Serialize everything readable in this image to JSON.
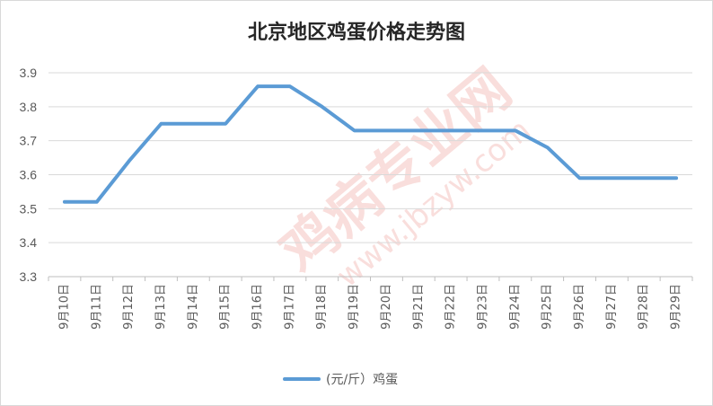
{
  "chart_data": {
    "type": "line",
    "title": "北京地区鸡蛋价格走势图",
    "xlabel": "",
    "ylabel": "",
    "ylim": [
      3.3,
      3.9
    ],
    "yticks": [
      "3.3",
      "3.4",
      "3.5",
      "3.6",
      "3.7",
      "3.8",
      "3.9"
    ],
    "grid": true,
    "legend_position": "bottom",
    "categories": [
      "9月10日",
      "9月11日",
      "9月12日",
      "9月13日",
      "9月14日",
      "9月15日",
      "9月16日",
      "9月17日",
      "9月18日",
      "9月19日",
      "9月20日",
      "9月21日",
      "9月22日",
      "9月23日",
      "9月24日",
      "9月25日",
      "9月26日",
      "9月27日",
      "9月28日",
      "9月29日"
    ],
    "series": [
      {
        "name": "(元/斤）鸡蛋",
        "color": "#5b9bd5",
        "values": [
          3.52,
          3.52,
          3.64,
          3.75,
          3.75,
          3.75,
          3.86,
          3.86,
          3.8,
          3.73,
          3.73,
          3.73,
          3.73,
          3.73,
          3.73,
          3.68,
          3.59,
          3.59,
          3.59,
          3.59
        ]
      }
    ]
  },
  "watermark": {
    "text": "鸡病专业网",
    "url": "www.jbzyw.com"
  }
}
